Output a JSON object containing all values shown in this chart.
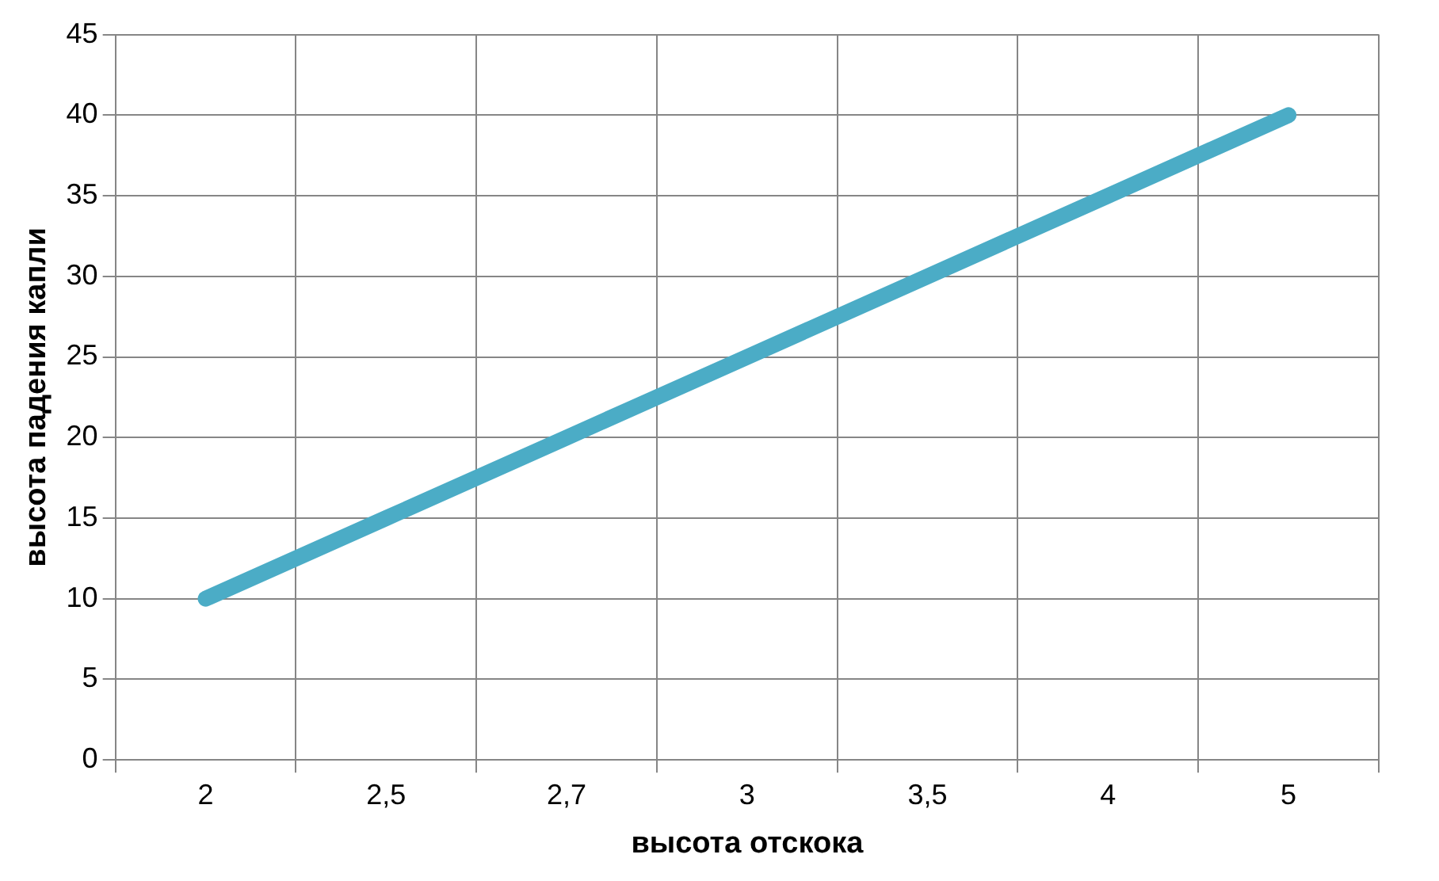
{
  "chart_data": {
    "type": "line",
    "xlabel": "высота отскока",
    "ylabel": "высота падения капли",
    "categories": [
      "2",
      "2,5",
      "2,7",
      "3",
      "3,5",
      "4",
      "5"
    ],
    "series": [
      {
        "color": "#4bacc6",
        "values": [
          10,
          15,
          20,
          25,
          30,
          35,
          40
        ]
      }
    ],
    "ylim": [
      0,
      45
    ],
    "yticks": [
      0,
      5,
      10,
      15,
      20,
      25,
      30,
      35,
      40,
      45
    ],
    "grid": true,
    "legend": false,
    "marker": "none",
    "line_style": "solid"
  }
}
